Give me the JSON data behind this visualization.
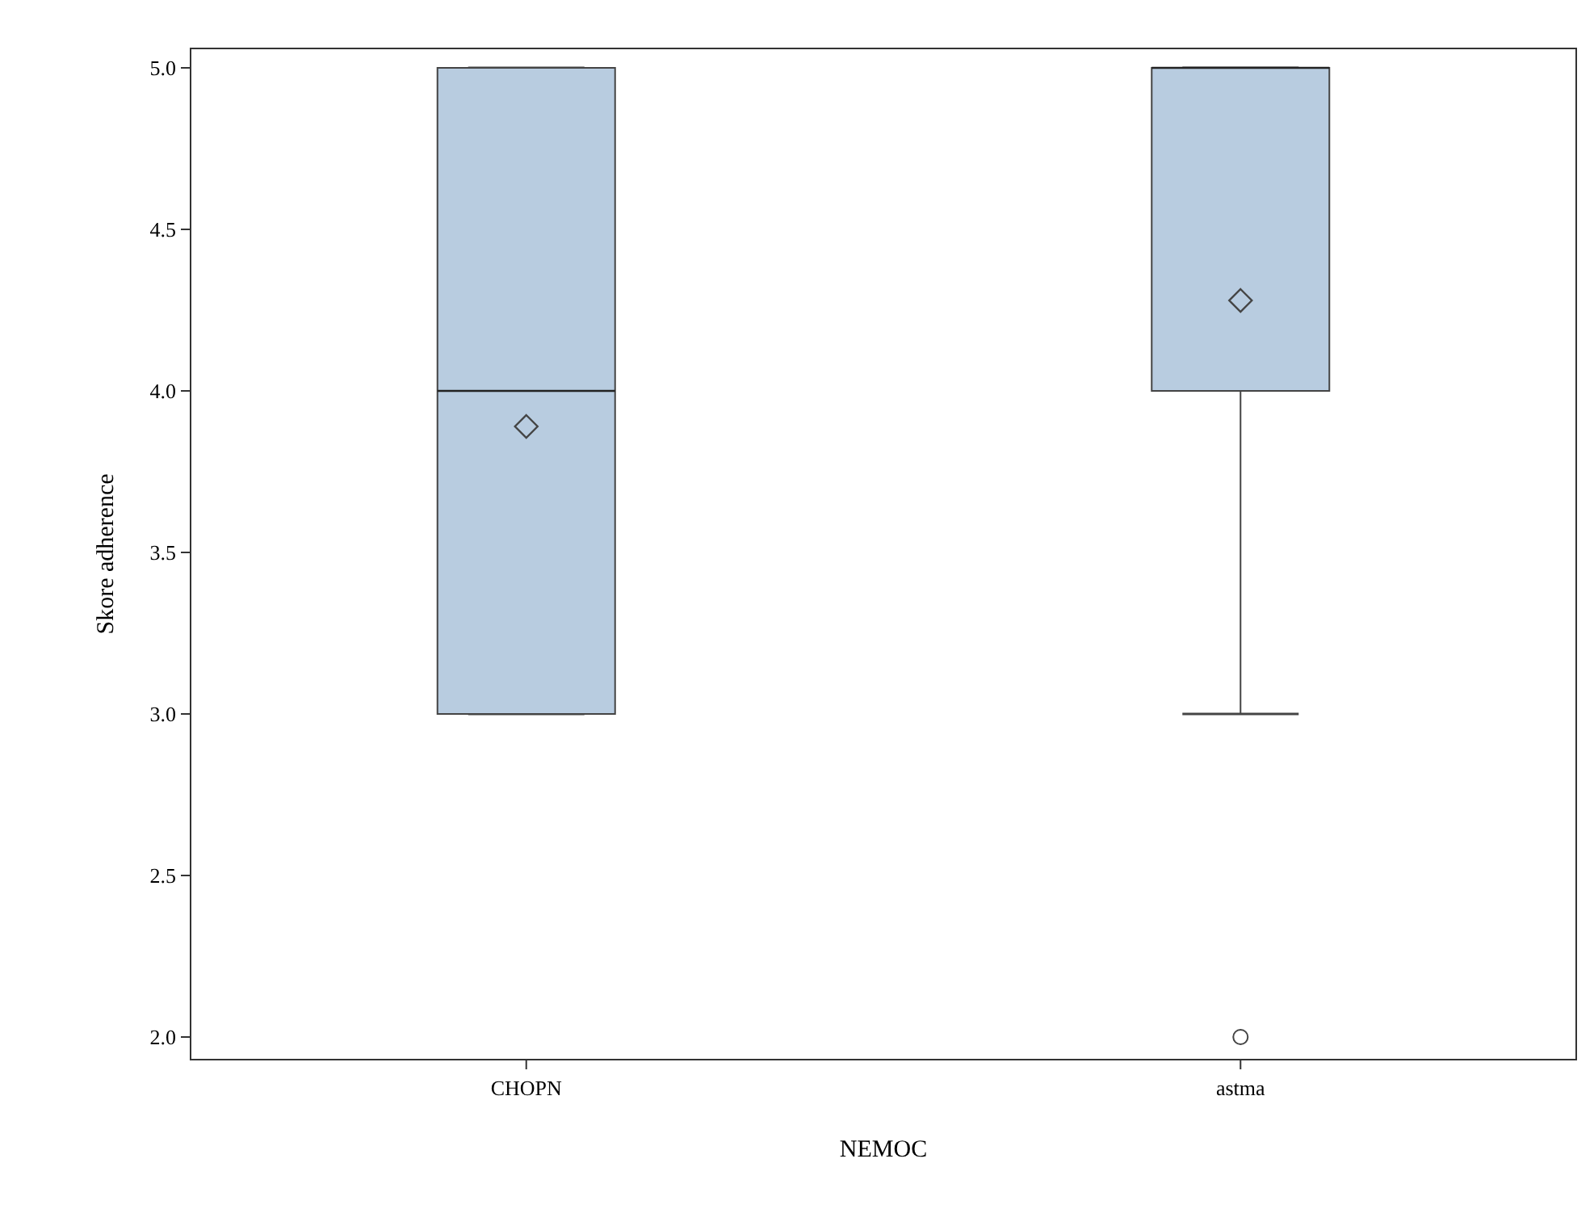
{
  "chart_data": {
    "type": "box",
    "xlabel": "NEMOC",
    "ylabel": "Skore adherence",
    "categories": [
      "CHOPN",
      "astma"
    ],
    "boxes": [
      {
        "low": 3,
        "q1": 3,
        "median": 4,
        "q3": 5,
        "high": 5,
        "mean": 3.89
      },
      {
        "low": 3,
        "q1": 4,
        "median": 5,
        "q3": 5,
        "high": 5,
        "mean": 4.28,
        "outliers": [
          2
        ]
      }
    ],
    "color": "#b8cce0",
    "ylim": [
      1.93,
      5.06
    ],
    "yticks": [
      {
        "value": 2,
        "label": "2.0"
      },
      {
        "value": 2.5,
        "label": "2.5"
      },
      {
        "value": 3,
        "label": "3.0"
      },
      {
        "value": 3.5,
        "label": "3.5"
      },
      {
        "value": 4,
        "label": "4.0"
      },
      {
        "value": 4.5,
        "label": "4.5"
      },
      {
        "value": 5,
        "label": "5.0"
      }
    ],
    "grid": false
  }
}
